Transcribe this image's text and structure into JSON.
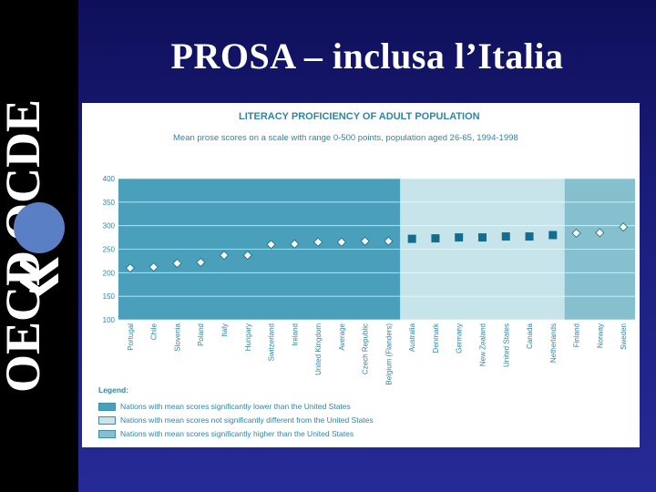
{
  "slide": {
    "title": "PROSA – inclusa l’Italia"
  },
  "logo": {
    "text": "OECD OCDE"
  },
  "colors": {
    "low": "#4aa0bb",
    "similar": "#c6e4e9",
    "high": "#86c0cf",
    "marker": "#126e8f",
    "text": "#2f85a5"
  },
  "chart_data": {
    "type": "scatter",
    "title": "LITERACY PROFICIENCY OF ADULT POPULATION",
    "subtitle": "Mean prose scores on a scale with range 0-500 points, population aged 26-65, 1994-1998",
    "ylim": [
      100,
      400
    ],
    "yticks": [
      "100",
      "150",
      "200",
      "250",
      "300",
      "350",
      "400"
    ],
    "grid": true,
    "categories": [
      "Portugal",
      "Chile",
      "Slovenia",
      "Poland",
      "Italy",
      "Hungary",
      "Switzerland",
      "Ireland",
      "United Kingdom",
      "Average",
      "Czech Republic",
      "Belgium (Flanders)",
      "Australia",
      "Denmark",
      "Germany",
      "New Zealand",
      "United States",
      "Canada",
      "Netherlands",
      "Finland",
      "Norway",
      "Sweden"
    ],
    "values": [
      210,
      212,
      220,
      222,
      237,
      237,
      260,
      261,
      265,
      265,
      267,
      267,
      272,
      273,
      275,
      275,
      277,
      277,
      280,
      284,
      285,
      297
    ],
    "groups": [
      "low",
      "low",
      "low",
      "low",
      "low",
      "low",
      "low",
      "low",
      "low",
      "low",
      "low",
      "low",
      "similar",
      "similar",
      "similar",
      "similar",
      "similar",
      "similar",
      "similar",
      "high",
      "high",
      "high"
    ],
    "legend": {
      "title": "Legend:",
      "items": [
        {
          "label": "Nations with mean scores significantly lower than the United States",
          "group": "low"
        },
        {
          "label": "Nations with mean scores not significantly different from the United States",
          "group": "similar"
        },
        {
          "label": "Nations with mean scores significantly higher than the United States",
          "group": "high"
        }
      ]
    }
  }
}
